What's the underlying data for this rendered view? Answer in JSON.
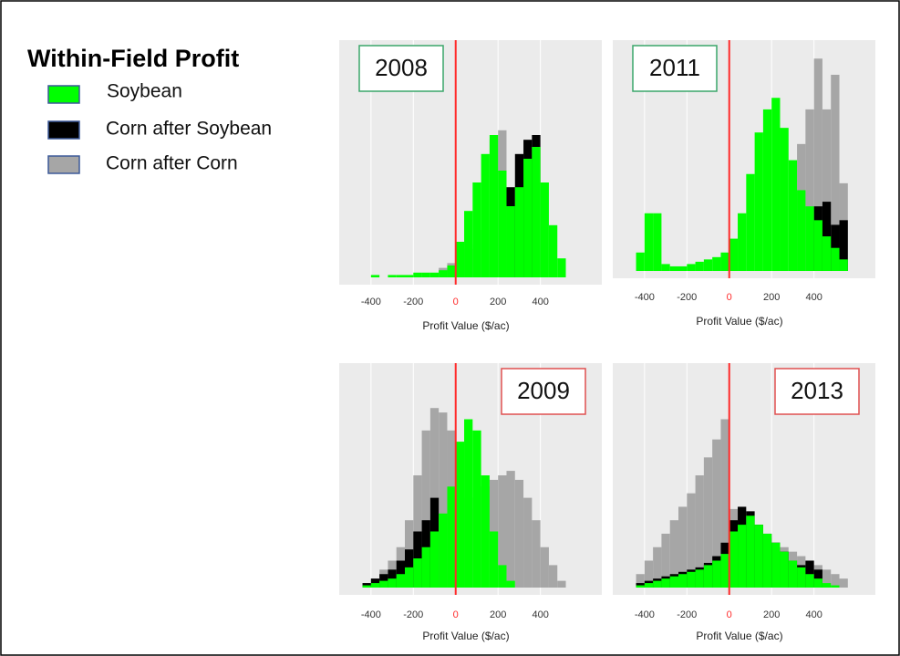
{
  "title": "Within-Field Profit",
  "chart_data": [
    {
      "type": "histogram",
      "title": "2008",
      "title_position": "left",
      "title_box_color": "#3aa66a",
      "xlabel": "Profit Value ($/ac)",
      "xlim": [
        -550,
        690
      ],
      "xticks": [
        -400,
        -200,
        0,
        200,
        400
      ],
      "ylim": [
        0,
        100
      ],
      "grid": true,
      "vline": {
        "value": 0,
        "color": "#ff2a2a"
      },
      "bins": [
        -440,
        -400,
        -360,
        -320,
        -280,
        -240,
        -200,
        -160,
        -120,
        -80,
        -40,
        0,
        40,
        80,
        120,
        160,
        200,
        240,
        280,
        320,
        360,
        400,
        440,
        480,
        520,
        560
      ],
      "series": [
        {
          "name": "Soybean",
          "color": "#00ff00",
          "values": [
            0,
            1,
            0,
            1,
            1,
            1,
            2,
            2,
            2,
            3,
            5,
            15,
            28,
            40,
            52,
            60,
            45,
            30,
            38,
            50,
            55,
            40,
            22,
            8,
            0
          ]
        },
        {
          "name": "Corn after Soybean",
          "color": "#000000",
          "values": [
            0,
            0,
            0,
            0,
            0,
            0,
            0,
            0,
            0,
            0,
            0,
            0,
            0,
            0,
            0,
            0,
            0,
            38,
            52,
            58,
            60,
            0,
            0,
            0,
            0
          ]
        },
        {
          "name": "Corn after Corn",
          "color": "#a6a6a6",
          "values": [
            0,
            0,
            0,
            0,
            0,
            0,
            0,
            0,
            0,
            4,
            6,
            10,
            12,
            14,
            20,
            58,
            62,
            0,
            0,
            0,
            0,
            0,
            0,
            0,
            0
          ]
        }
      ]
    },
    {
      "type": "histogram",
      "title": "2011",
      "title_position": "left",
      "title_box_color": "#3aa66a",
      "xlabel": "Profit Value ($/ac)",
      "xlim": [
        -550,
        690
      ],
      "xticks": [
        -400,
        -200,
        0,
        200,
        400
      ],
      "ylim": [
        0,
        100
      ],
      "grid": true,
      "vline": {
        "value": 0,
        "color": "#ff2a2a"
      },
      "bins": [
        -440,
        -400,
        -360,
        -320,
        -280,
        -240,
        -200,
        -160,
        -120,
        -80,
        -40,
        0,
        40,
        80,
        120,
        160,
        200,
        240,
        280,
        320,
        360,
        400,
        440,
        480,
        520,
        560
      ],
      "series": [
        {
          "name": "Soybean",
          "color": "#00ff00",
          "values": [
            8,
            25,
            25,
            3,
            2,
            2,
            3,
            4,
            5,
            6,
            8,
            14,
            25,
            42,
            60,
            70,
            75,
            62,
            48,
            35,
            28,
            22,
            15,
            10,
            5
          ]
        },
        {
          "name": "Corn after Soybean",
          "color": "#000000",
          "values": [
            0,
            0,
            0,
            0,
            0,
            0,
            0,
            0,
            0,
            0,
            0,
            0,
            0,
            0,
            0,
            0,
            0,
            0,
            0,
            0,
            0,
            28,
            30,
            20,
            22
          ]
        },
        {
          "name": "Corn after Corn",
          "color": "#a6a6a6",
          "values": [
            0,
            0,
            0,
            0,
            0,
            0,
            0,
            0,
            0,
            0,
            0,
            0,
            0,
            0,
            0,
            0,
            0,
            0,
            0,
            55,
            70,
            92,
            70,
            85,
            38
          ]
        }
      ]
    },
    {
      "type": "histogram",
      "title": "2009",
      "title_position": "right",
      "title_box_color": "#e05050",
      "xlabel": "Profit Value ($/ac)",
      "xlim": [
        -550,
        690
      ],
      "xticks": [
        -400,
        -200,
        0,
        200,
        400
      ],
      "ylim": [
        0,
        100
      ],
      "grid": true,
      "vline": {
        "value": 0,
        "color": "#ff2a2a"
      },
      "bins": [
        -440,
        -400,
        -360,
        -320,
        -280,
        -240,
        -200,
        -160,
        -120,
        -80,
        -40,
        0,
        40,
        80,
        120,
        160,
        200,
        240,
        280,
        320,
        360,
        400,
        440,
        480,
        520,
        560
      ],
      "series": [
        {
          "name": "Soybean",
          "color": "#00ff00",
          "values": [
            1,
            2,
            3,
            4,
            6,
            9,
            13,
            18,
            25,
            33,
            45,
            65,
            75,
            70,
            50,
            25,
            10,
            3,
            0,
            0,
            0,
            0,
            0,
            0,
            0
          ]
        },
        {
          "name": "Corn after Soybean",
          "color": "#000000",
          "values": [
            2,
            4,
            6,
            8,
            12,
            17,
            25,
            30,
            40,
            0,
            0,
            0,
            0,
            0,
            0,
            0,
            0,
            0,
            0,
            0,
            0,
            0,
            0,
            0,
            0
          ]
        },
        {
          "name": "Corn after Corn",
          "color": "#a6a6a6",
          "values": [
            2,
            4,
            8,
            12,
            18,
            30,
            50,
            70,
            80,
            78,
            70,
            45,
            40,
            35,
            45,
            48,
            50,
            52,
            48,
            40,
            30,
            18,
            10,
            3,
            0
          ]
        }
      ]
    },
    {
      "type": "histogram",
      "title": "2013",
      "title_position": "right",
      "title_box_color": "#e05050",
      "xlabel": "Profit Value ($/ac)",
      "xlim": [
        -550,
        690
      ],
      "xticks": [
        -400,
        -200,
        0,
        200,
        400
      ],
      "ylim": [
        0,
        100
      ],
      "grid": true,
      "vline": {
        "value": 0,
        "color": "#ff2a2a"
      },
      "bins": [
        -440,
        -400,
        -360,
        -320,
        -280,
        -240,
        -200,
        -160,
        -120,
        -80,
        -40,
        0,
        40,
        80,
        120,
        160,
        200,
        240,
        280,
        320,
        360,
        400,
        440,
        480,
        520,
        560
      ],
      "series": [
        {
          "name": "Soybean",
          "color": "#00ff00",
          "values": [
            1,
            2,
            3,
            4,
            5,
            6,
            7,
            8,
            10,
            12,
            15,
            25,
            28,
            32,
            28,
            24,
            20,
            16,
            12,
            9,
            6,
            4,
            2,
            1,
            0
          ]
        },
        {
          "name": "Corn after Soybean",
          "color": "#000000",
          "values": [
            2,
            3,
            4,
            5,
            6,
            7,
            8,
            9,
            11,
            14,
            20,
            30,
            36,
            34,
            28,
            24,
            20,
            16,
            12,
            10,
            12,
            8,
            0,
            0,
            0
          ]
        },
        {
          "name": "Corn after Corn",
          "color": "#a6a6a6",
          "values": [
            6,
            12,
            18,
            24,
            30,
            36,
            42,
            50,
            58,
            66,
            75,
            35,
            30,
            26,
            24,
            22,
            20,
            18,
            16,
            14,
            12,
            10,
            8,
            6,
            4
          ]
        }
      ]
    }
  ]
}
